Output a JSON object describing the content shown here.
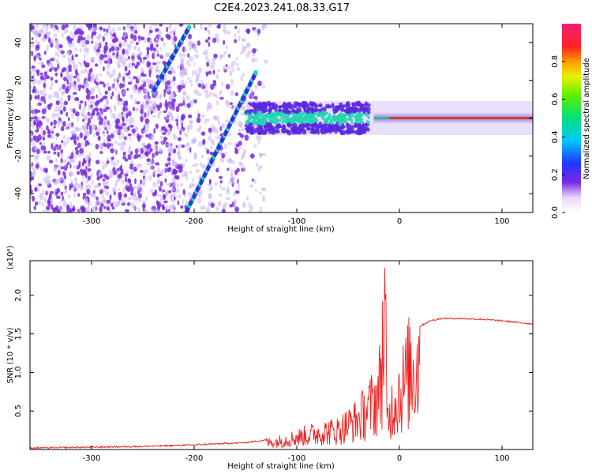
{
  "figure_title": "C2E4.2023.241.08.33.G17",
  "colors": {
    "line": "#ee2222",
    "spectrum_dots": "#7a2ae0",
    "spectrum_faint": "#c9b4f2",
    "spectrum_band": "#22d6b0",
    "spectrum_core": "#ff2a2a"
  },
  "colorbar": {
    "label": "Normalized spectral amplitude",
    "ticks": [
      "0.0",
      "0.2",
      "0.4",
      "0.6",
      "0.8"
    ],
    "tick_values": [
      0.0,
      0.2,
      0.4,
      0.6,
      0.8
    ],
    "range": [
      0,
      1
    ],
    "colormap": "rainbow-white-to-magenta"
  },
  "chart_data": [
    {
      "type": "heatmap",
      "title": "C2E4.2023.241.08.33.G17",
      "xlabel": "Height of straight line (km)",
      "ylabel": "Frequency (Hz)",
      "xlim": [
        -360,
        130
      ],
      "ylim": [
        -50,
        50
      ],
      "xticks": [
        -300,
        -200,
        -100,
        0,
        100
      ],
      "xtick_labels": [
        "-300",
        "-200",
        "-100",
        "0",
        "100"
      ],
      "yticks": [
        -40,
        -20,
        0,
        20,
        40
      ],
      "ytick_labels": [
        "-40",
        "-20",
        "0",
        "20",
        "40"
      ],
      "features": {
        "diagonal_streak_upper": {
          "x": [
            -240,
            -205
          ],
          "y": [
            14,
            48
          ]
        },
        "diagonal_streak_main": {
          "x": [
            -208,
            -140
          ],
          "y": [
            -50,
            24
          ]
        },
        "signal_band_center_hz": 0,
        "noisy_region_x": [
          -360,
          -130
        ],
        "band_region_x": [
          -150,
          130
        ]
      }
    },
    {
      "type": "line",
      "xlabel": "Height of straight line (km)",
      "ylabel": "SNR (10 * v/v)",
      "y_scale_label": "(x10⁴)",
      "xlim": [
        -360,
        130
      ],
      "ylim": [
        0,
        2.45
      ],
      "xticks": [
        -300,
        -200,
        -100,
        0,
        100
      ],
      "xtick_labels": [
        "-300",
        "-200",
        "-100",
        "0",
        "100"
      ],
      "yticks": [
        0.5,
        1.0,
        1.5,
        2.0
      ],
      "ytick_labels": [
        "0.5",
        "1.0",
        "1.5",
        "2.0"
      ],
      "series": [
        {
          "x": [
            -360,
            -300,
            -250,
            -200,
            -150,
            -120,
            -100,
            -80,
            -60,
            -50,
            -40,
            -30,
            -20,
            -14,
            -12,
            -5,
            0,
            5,
            10,
            20,
            30,
            40,
            60,
            80,
            100,
            115,
            130
          ],
          "y": [
            0.02,
            0.03,
            0.04,
            0.06,
            0.09,
            0.14,
            0.22,
            0.3,
            0.35,
            0.45,
            0.55,
            0.75,
            1.0,
            2.4,
            0.5,
            0.9,
            1.05,
            1.2,
            1.45,
            1.6,
            1.67,
            1.7,
            1.7,
            1.69,
            1.67,
            1.65,
            1.63
          ]
        }
      ]
    }
  ]
}
